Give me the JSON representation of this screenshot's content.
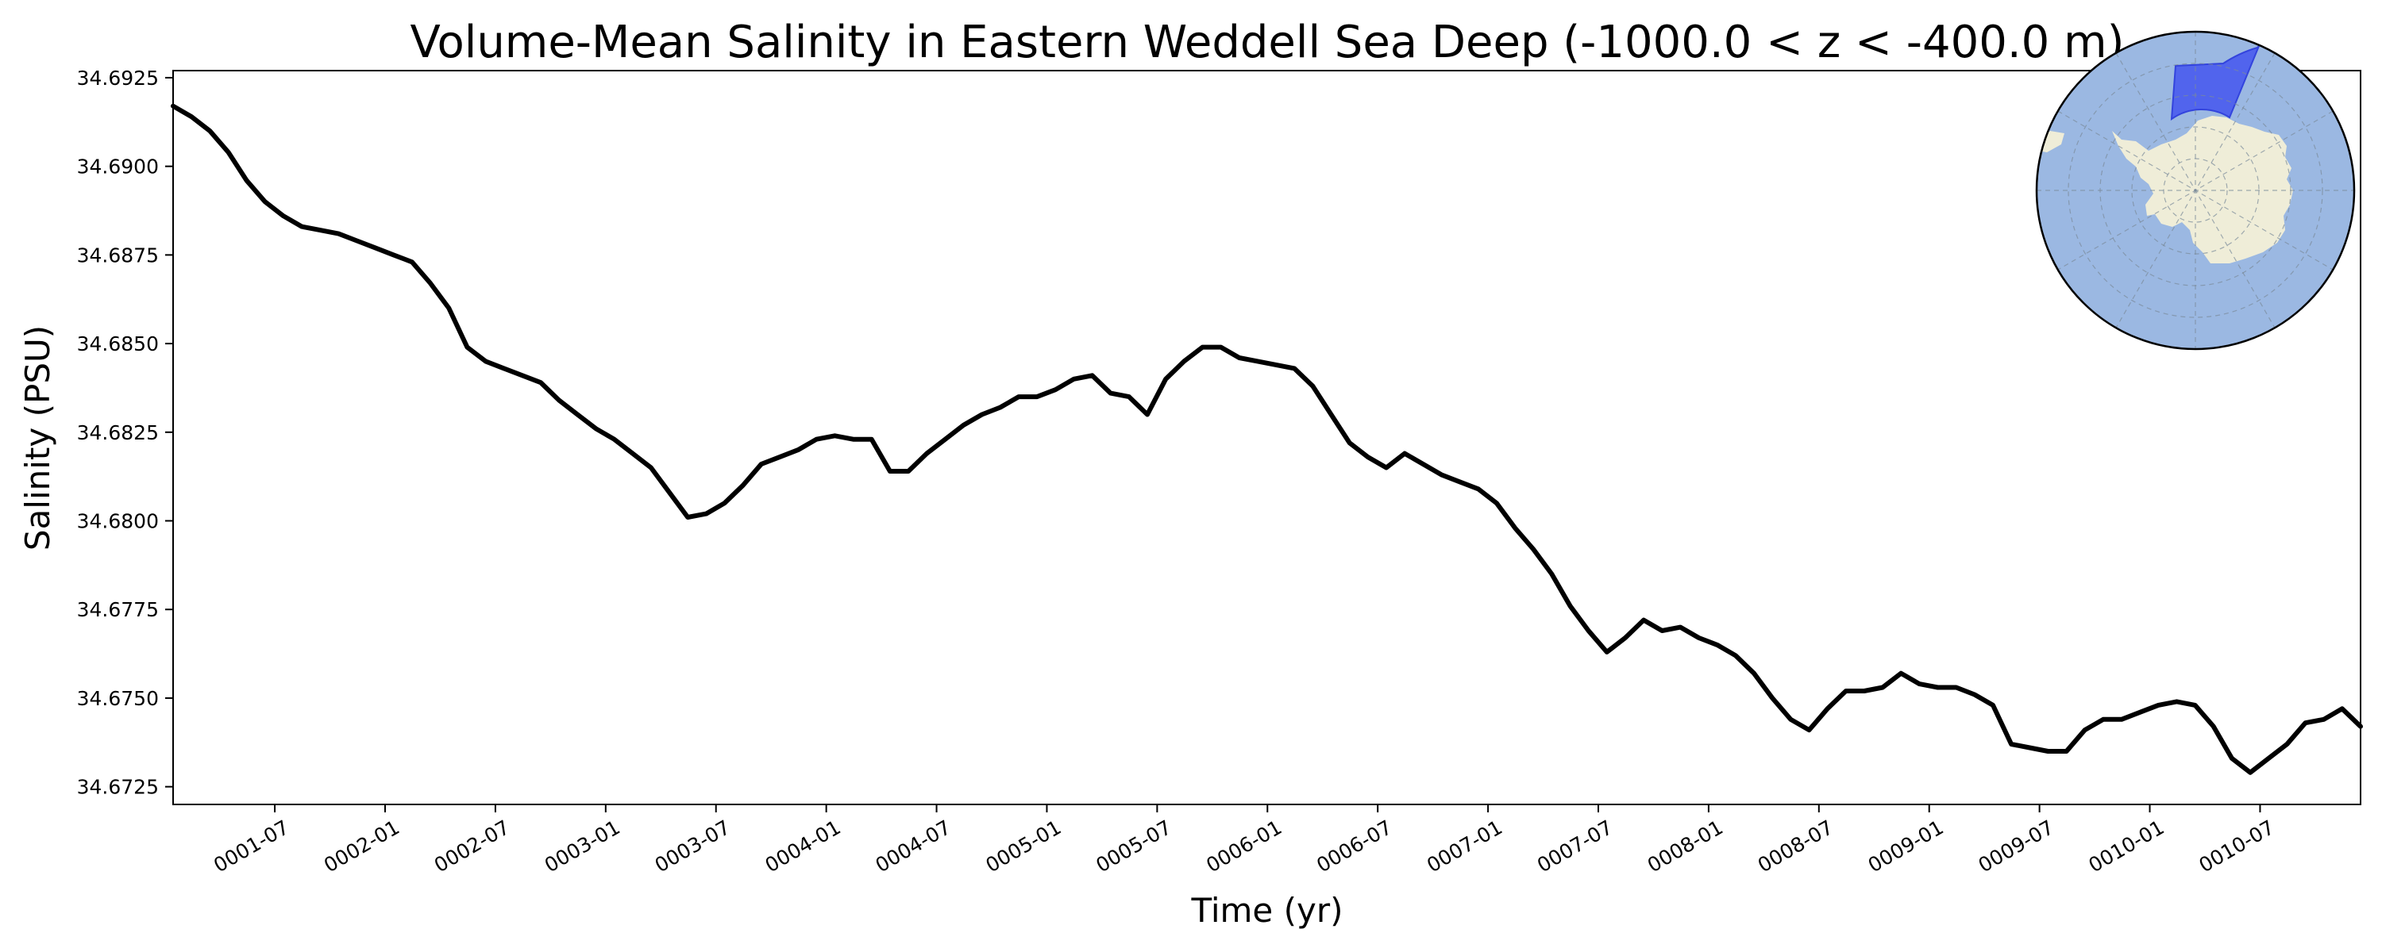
{
  "chart_data": {
    "type": "line",
    "title": "Volume-Mean Salinity in Eastern Weddell Sea Deep (-1000.0 < z < -400.0 m)",
    "xlabel": "Time (yr)",
    "ylabel": "Salinity (PSU)",
    "xlim": [
      "0001-01-15",
      "0010-12-15"
    ],
    "ylim": [
      34.672,
      34.6927
    ],
    "x_ticks": [
      "0001-07",
      "0002-01",
      "0002-07",
      "0003-01",
      "0003-07",
      "0004-01",
      "0004-07",
      "0005-01",
      "0005-07",
      "0006-01",
      "0006-07",
      "0007-01",
      "0007-07",
      "0008-01",
      "0008-07",
      "0009-01",
      "0009-07",
      "0010-01",
      "0010-07"
    ],
    "y_ticks": [
      "34.6725",
      "34.6750",
      "34.6775",
      "34.6800",
      "34.6825",
      "34.6850",
      "34.6875",
      "34.6900",
      "34.6925"
    ],
    "grid": false,
    "line_color": "#000000",
    "series": [
      {
        "x": [
          "0001-01",
          "0001-02",
          "0001-03",
          "0001-04",
          "0001-05",
          "0001-06",
          "0001-07",
          "0001-08",
          "0001-09",
          "0001-10",
          "0001-11",
          "0001-12",
          "0002-01",
          "0002-02",
          "0002-03",
          "0002-04",
          "0002-05",
          "0002-06",
          "0002-07",
          "0002-08",
          "0002-09",
          "0002-10",
          "0002-11",
          "0002-12",
          "0003-01",
          "0003-02",
          "0003-03",
          "0003-04",
          "0003-05",
          "0003-06",
          "0003-07",
          "0003-08",
          "0003-09",
          "0003-10",
          "0003-11",
          "0003-12",
          "0004-01",
          "0004-02",
          "0004-03",
          "0004-04",
          "0004-05",
          "0004-06",
          "0004-07",
          "0004-08",
          "0004-09",
          "0004-10",
          "0004-11",
          "0004-12",
          "0005-01",
          "0005-02",
          "0005-03",
          "0005-04",
          "0005-05",
          "0005-06",
          "0005-07",
          "0005-08",
          "0005-09",
          "0005-10",
          "0005-11",
          "0005-12",
          "0006-01",
          "0006-02",
          "0006-03",
          "0006-04",
          "0006-05",
          "0006-06",
          "0006-07",
          "0006-08",
          "0006-09",
          "0006-10",
          "0006-11",
          "0006-12",
          "0007-01",
          "0007-02",
          "0007-03",
          "0007-04",
          "0007-05",
          "0007-06",
          "0007-07",
          "0007-08",
          "0007-09",
          "0007-10",
          "0007-11",
          "0007-12",
          "0008-01",
          "0008-02",
          "0008-03",
          "0008-04",
          "0008-05",
          "0008-06",
          "0008-07",
          "0008-08",
          "0008-09",
          "0008-10",
          "0008-11",
          "0008-12",
          "0009-01",
          "0009-02",
          "0009-03",
          "0009-04",
          "0009-05",
          "0009-06",
          "0009-07",
          "0009-08",
          "0009-09",
          "0009-10",
          "0009-11",
          "0009-12",
          "0010-01",
          "0010-02",
          "0010-03",
          "0010-04",
          "0010-05",
          "0010-06",
          "0010-07",
          "0010-08",
          "0010-09",
          "0010-10",
          "0010-11",
          "0010-12"
        ],
        "y": [
          34.6917,
          34.6914,
          34.691,
          34.6904,
          34.6896,
          34.689,
          34.6886,
          34.6883,
          34.6882,
          34.6881,
          34.6879,
          34.6877,
          34.6875,
          34.6873,
          34.6867,
          34.686,
          34.6849,
          34.6845,
          34.6843,
          34.6841,
          34.6839,
          34.6834,
          34.683,
          34.6826,
          34.6823,
          34.6819,
          34.6815,
          34.6808,
          34.6801,
          34.6802,
          34.6805,
          34.681,
          34.6816,
          34.6818,
          34.682,
          34.6823,
          34.6824,
          34.6823,
          34.6823,
          34.6814,
          34.6814,
          34.6819,
          34.6823,
          34.6827,
          34.683,
          34.6832,
          34.6835,
          34.6835,
          34.6837,
          34.684,
          34.6841,
          34.6836,
          34.6835,
          34.683,
          34.684,
          34.6845,
          34.6849,
          34.6849,
          34.6846,
          34.6845,
          34.6844,
          34.6843,
          34.6838,
          34.683,
          34.6822,
          34.6818,
          34.6815,
          34.6819,
          34.6816,
          34.6813,
          34.6811,
          34.6809,
          34.6805,
          34.6798,
          34.6792,
          34.6785,
          34.6776,
          34.6769,
          34.6763,
          34.6767,
          34.6772,
          34.6769,
          34.677,
          34.6767,
          34.6765,
          34.6762,
          34.6757,
          34.675,
          34.6744,
          34.6741,
          34.6747,
          34.6752,
          34.6752,
          34.6753,
          34.6757,
          34.6754,
          34.6753,
          34.6753,
          34.6751,
          34.6748,
          34.6737,
          34.6736,
          34.6735,
          34.6735,
          34.6741,
          34.6744,
          34.6744,
          34.6746,
          34.6748,
          34.6749,
          34.6748,
          34.6742,
          34.6733,
          34.6729,
          34.6733,
          34.6737,
          34.6743,
          34.6744,
          34.6747,
          34.6742
        ]
      }
    ]
  },
  "inset_map": {
    "ocean_color": "#9bb8e2",
    "land_color": "#efedd8",
    "region_color": "#4455ee"
  }
}
